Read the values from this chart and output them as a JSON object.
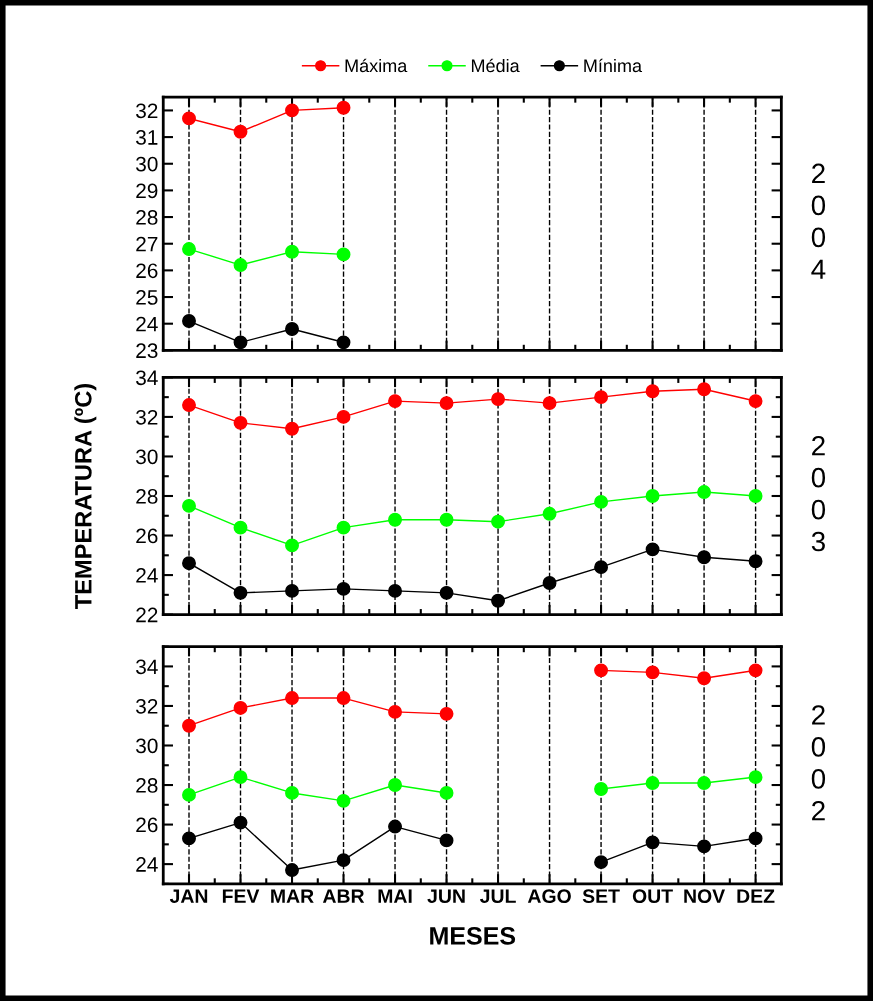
{
  "chart_data": [
    {
      "type": "line",
      "categories": [
        null,
        null,
        null,
        null,
        null,
        null,
        null,
        null,
        null,
        null,
        null,
        null
      ],
      "ylim": [
        23,
        32.5
      ],
      "yticks": [
        23,
        24,
        25,
        26,
        27,
        28,
        29,
        30,
        31,
        32
      ],
      "grid": "x",
      "legend": "top",
      "marker": "circle",
      "tick_labels": "y",
      "annotations": [
        "2004"
      ],
      "series": [
        {
          "name": "Máxima",
          "color": "#ff0000",
          "values": [
            31.7,
            31.2,
            32.0,
            32.1,
            null,
            null,
            null,
            null,
            null,
            null,
            null,
            null
          ]
        },
        {
          "name": "Média",
          "color": "#00ff00",
          "values": [
            26.8,
            26.2,
            26.7,
            26.6,
            null,
            null,
            null,
            null,
            null,
            null,
            null,
            null
          ]
        },
        {
          "name": "Mínima",
          "color": "#000000",
          "values": [
            24.1,
            23.3,
            23.8,
            23.3,
            null,
            null,
            null,
            null,
            null,
            null,
            null,
            null
          ]
        }
      ]
    },
    {
      "type": "line",
      "categories": [
        null,
        null,
        null,
        null,
        null,
        null,
        null,
        null,
        null,
        null,
        null,
        null
      ],
      "ylim": [
        22,
        34
      ],
      "yticks": [
        22,
        24,
        26,
        28,
        30,
        32,
        34
      ],
      "grid": "x",
      "marker": "circle",
      "tick_labels": "y",
      "ylabel": "TEMPERATURA (ºC)",
      "annotations": [
        "2003"
      ],
      "series": [
        {
          "color": "#ff0000",
          "values": [
            32.6,
            31.7,
            31.4,
            32.0,
            32.8,
            32.7,
            32.9,
            32.7,
            33.0,
            33.3,
            33.4,
            32.8
          ]
        },
        {
          "color": "#00ff00",
          "values": [
            27.5,
            26.4,
            25.5,
            26.4,
            26.8,
            26.8,
            26.7,
            27.1,
            27.7,
            28.0,
            28.2,
            28.0
          ]
        },
        {
          "color": "#000000",
          "values": [
            24.6,
            23.1,
            23.2,
            23.3,
            23.2,
            23.1,
            22.7,
            23.6,
            24.4,
            25.3,
            24.9,
            24.7
          ]
        }
      ]
    },
    {
      "type": "line",
      "categories": [
        "JAN",
        "FEV",
        "MAR",
        "ABR",
        "MAI",
        "JUN",
        "JUL",
        "AGO",
        "SET",
        "OUT",
        "NOV",
        "DEZ"
      ],
      "ylim": [
        23,
        35
      ],
      "yticks": [
        24,
        26,
        28,
        30,
        32,
        34
      ],
      "grid": "x",
      "marker": "circle",
      "xlabel": "MESES",
      "annotations": [
        "2002"
      ],
      "series": [
        {
          "color": "#ff0000",
          "values": [
            31.0,
            31.9,
            32.4,
            32.4,
            31.7,
            31.6,
            null,
            null,
            33.8,
            33.7,
            33.4,
            33.8
          ]
        },
        {
          "color": "#00ff00",
          "values": [
            27.5,
            28.4,
            27.6,
            27.2,
            28.0,
            27.6,
            null,
            null,
            27.8,
            28.1,
            28.1,
            28.4
          ]
        },
        {
          "color": "#000000",
          "values": [
            25.3,
            26.1,
            23.7,
            24.2,
            25.9,
            25.2,
            null,
            null,
            24.1,
            25.1,
            24.9,
            25.3
          ]
        }
      ]
    }
  ]
}
